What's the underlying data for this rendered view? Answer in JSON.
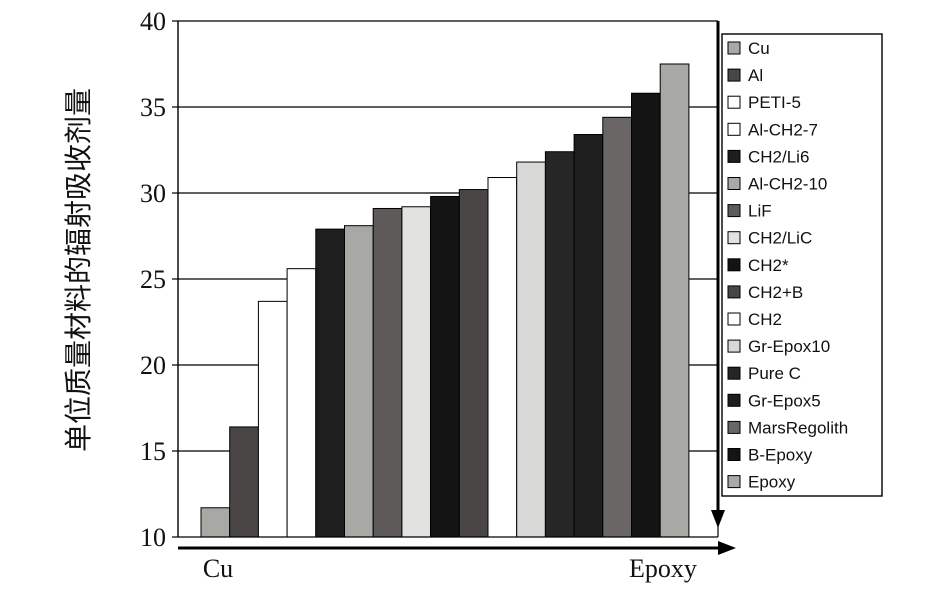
{
  "chart_data": {
    "type": "bar",
    "ylabel": "单位质量材料的辐射吸收剂量",
    "x_start_label": "Cu",
    "x_end_label": "Epoxy",
    "ylim": [
      10,
      40
    ],
    "yticks": [
      "10",
      "15",
      "20",
      "25",
      "30",
      "35",
      "40"
    ],
    "grid": true,
    "legend_placement": "right",
    "bars": [
      {
        "name": "Cu",
        "value": 11.7,
        "color": "#a8a8a4"
      },
      {
        "name": "Al",
        "value": 16.4,
        "color": "#4a4646"
      },
      {
        "name": "PETI-5",
        "value": 23.7,
        "color": "#ffffff"
      },
      {
        "name": "Al-CH2-7",
        "value": 25.6,
        "color": "#ffffff"
      },
      {
        "name": "CH2/Li6",
        "value": 27.9,
        "color": "#1e1e1e"
      },
      {
        "name": "Al-CH2-10",
        "value": 28.1,
        "color": "#a8a8a4"
      },
      {
        "name": "LiF",
        "value": 29.1,
        "color": "#5e5a5a"
      },
      {
        "name": "CH2/LiC",
        "value": 29.2,
        "color": "#e2e2e0"
      },
      {
        "name": "CH2*",
        "value": 29.8,
        "color": "#141414"
      },
      {
        "name": "CH2+B",
        "value": 30.2,
        "color": "#4a4646"
      },
      {
        "name": "CH2",
        "value": 30.9,
        "color": "#ffffff"
      },
      {
        "name": "Gr-Epox10",
        "value": 31.8,
        "color": "#d8d8d6"
      },
      {
        "name": "Pure C",
        "value": 32.4,
        "color": "#262626"
      },
      {
        "name": "Gr-Epox5",
        "value": 33.4,
        "color": "#1e1e1e"
      },
      {
        "name": "MarsRegolith",
        "value": 34.4,
        "color": "#6a6666"
      },
      {
        "name": "B-Epoxy",
        "value": 35.8,
        "color": "#141414"
      },
      {
        "name": "Epoxy",
        "value": 37.5,
        "color": "#a8a8a4"
      }
    ]
  }
}
